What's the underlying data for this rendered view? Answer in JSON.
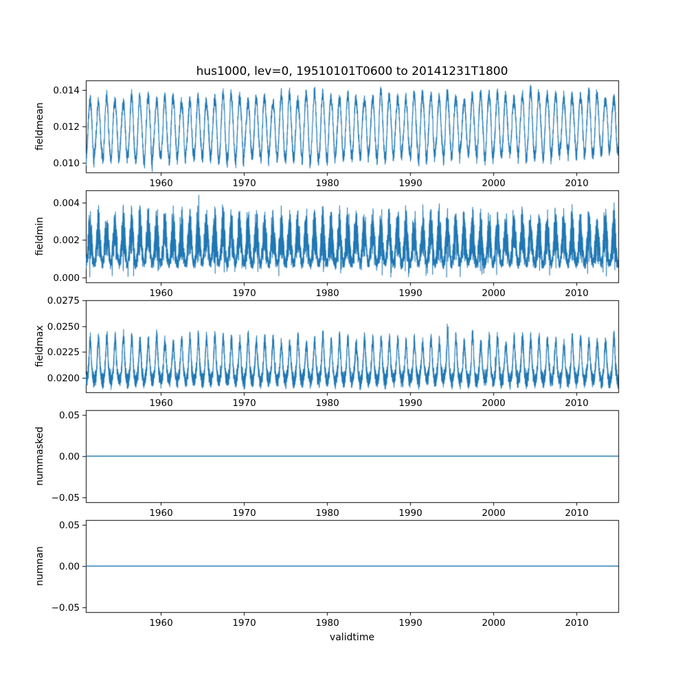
{
  "title": "hus1000, lev=0, 19510101T0600 to 20141231T1800",
  "colors": {
    "line": "#1f77b4",
    "axes": "#000000",
    "text": "#000000",
    "background": "#ffffff"
  },
  "x_axis": {
    "label": "validtime",
    "xlim": [
      1951.0,
      2015.05
    ],
    "xticks": [
      {
        "value": 1960,
        "label": "1960"
      },
      {
        "value": 1970,
        "label": "1970"
      },
      {
        "value": 1980,
        "label": "1980"
      },
      {
        "value": 1990,
        "label": "1990"
      },
      {
        "value": 2000,
        "label": "2000"
      },
      {
        "value": 2010,
        "label": "2010"
      }
    ],
    "time_range_start": "19510101T0600",
    "time_range_end": "20141231T1800"
  },
  "layout_hints": {
    "subplots": 5,
    "shared_x": true,
    "grid": false,
    "legend": false
  },
  "chart_data": [
    {
      "type": "line",
      "ylabel": "fieldmean",
      "ylim": [
        0.00945,
        0.01455
      ],
      "yticks": [
        {
          "value": 0.01,
          "label": "0.010"
        },
        {
          "value": 0.012,
          "label": "0.012"
        },
        {
          "value": 0.014,
          "label": "0.014"
        }
      ],
      "series": {
        "kind": "seasonal",
        "description": "Dense 6-hourly time series 1951-2014 with a strong annual cycle oscillating roughly between 0.010 and 0.0142, slight upward trend toward 2014",
        "mean": 0.01195,
        "seasonal_amplitude": 0.00165,
        "amplitude_jitter": 0.00025,
        "noise": 0.00035,
        "trend_per_year": 4.5e-06,
        "approx_min": 0.0097,
        "approx_max": 0.0144,
        "points": 6400
      }
    },
    {
      "type": "line",
      "ylabel": "fieldmin",
      "ylim": [
        -0.00025,
        0.00465
      ],
      "yticks": [
        {
          "value": 0.0,
          "label": "0.000"
        },
        {
          "value": 0.002,
          "label": "0.002"
        },
        {
          "value": 0.004,
          "label": "0.004"
        }
      ],
      "series": {
        "kind": "seasonal-noisy",
        "description": "Very noisy series filling a dense band between about 0.0005 and 0.003, annual spikes up to about 0.0045 and occasional dips to 0.000",
        "mean": 0.0016,
        "seasonal_amplitude": 0.00085,
        "noise_base": 0.0002,
        "noise_peak": 0.00105,
        "clamp": [
          3e-05,
          0.0046
        ],
        "approx_min": 0.0,
        "approx_max": 0.0045,
        "points": 9000
      }
    },
    {
      "type": "line",
      "ylabel": "fieldmax",
      "ylim": [
        0.0186,
        0.0275
      ],
      "yticks": [
        {
          "value": 0.02,
          "label": "0.0200"
        },
        {
          "value": 0.0225,
          "label": "0.0225"
        },
        {
          "value": 0.025,
          "label": "0.0250"
        },
        {
          "value": 0.0275,
          "label": "0.0275"
        }
      ],
      "series": {
        "kind": "seasonal-peaky",
        "description": "Noisy series with a dense base band around 0.0195-0.0225 and sharp annual peaks reaching 0.025-0.027",
        "base": 0.0206,
        "seasonal_amplitude": 0.0009,
        "peak_boost": 0.0021,
        "noise": 0.00055,
        "clamp": [
          0.01885,
          0.0273
        ],
        "approx_min": 0.019,
        "approx_max": 0.0272,
        "points": 9000
      }
    },
    {
      "type": "line",
      "ylabel": "nummasked",
      "ylim": [
        -0.0555,
        0.0555
      ],
      "yticks": [
        {
          "value": -0.05,
          "label": "−0.05"
        },
        {
          "value": 0.0,
          "label": "0.00"
        },
        {
          "value": 0.05,
          "label": "0.05"
        }
      ],
      "series": {
        "kind": "constant",
        "description": "Constant zero line across the full time range",
        "value": 0.0
      }
    },
    {
      "type": "line",
      "ylabel": "numnan",
      "ylim": [
        -0.0555,
        0.0555
      ],
      "yticks": [
        {
          "value": -0.05,
          "label": "−0.05"
        },
        {
          "value": 0.0,
          "label": "0.00"
        },
        {
          "value": 0.05,
          "label": "0.05"
        }
      ],
      "series": {
        "kind": "constant",
        "description": "Constant zero line across the full time range",
        "value": 0.0
      }
    }
  ]
}
